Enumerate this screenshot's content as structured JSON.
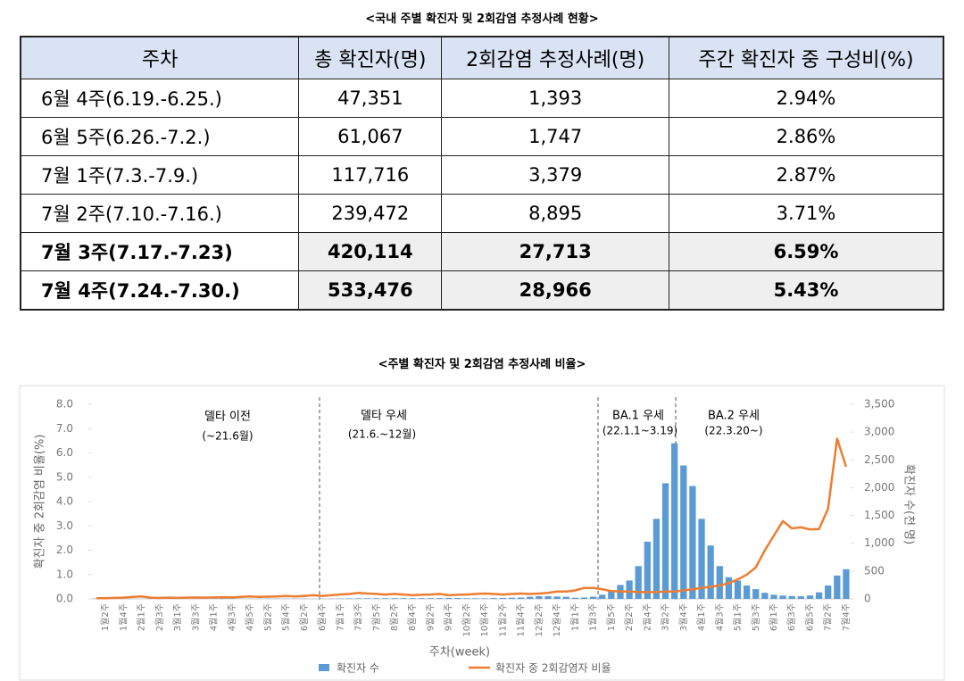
{
  "table": {
    "title": "<국내 주별 확진자 및 2회감염 추정사례 현황>",
    "headers": [
      "주차",
      "총 확진자(명)",
      "2회감염 추정사례(명)",
      "주간 확진자 중 구성비(%)"
    ],
    "rows": [
      [
        "6월 4주(6.19.-6.25.)",
        "47,351",
        "1,393",
        "2.94%"
      ],
      [
        "6월 5주(6.26.-7.2.)",
        "61,067",
        "1,747",
        "2.86%"
      ],
      [
        "7월 1주(7.3.-7.9.)",
        "117,716",
        "3,379",
        "2.87%"
      ],
      [
        "7월 2주(7.10.-7.16.)",
        "239,472",
        "8,895",
        "3.71%"
      ],
      [
        "7월 3주(7.17.-7.23)",
        "420,114",
        "27,713",
        "6.59%"
      ],
      [
        "7월 4주(7.24.-7.30.)",
        "533,476",
        "28,966",
        "5.43%"
      ]
    ]
  },
  "chart_data": {
    "type": "bar_line",
    "title": "<주별 확진자 및 2회감염 추정사례 비율>",
    "xlabel": "주차(week)",
    "ylabel": "확진자 중 2회감염 비율(%)",
    "y2label": "확진자 수(천 명)",
    "annotations": [
      "델타 이전",
      "(~21.6월)",
      "델타 우세",
      "(21.6.~12월)",
      "BA.1 우세",
      "(22.1.1~3.19)",
      "BA.2 우세",
      "(22.3.20~)"
    ],
    "categories": [
      null,
      "1월2주",
      null,
      "1월4주",
      null,
      "2월1주",
      null,
      "2월3주",
      null,
      "3월1주",
      null,
      "3월3주",
      null,
      "4월1주",
      null,
      "4월3주",
      null,
      "4월5주",
      null,
      "5월2주",
      null,
      "5월4주",
      null,
      "6월2주",
      null,
      "6월4주",
      null,
      "7월1주",
      null,
      "7월3주",
      null,
      "7월5주",
      null,
      "8월2주",
      null,
      "8월4주",
      null,
      "9월2주",
      null,
      "9월4주",
      null,
      "10월2주",
      null,
      "10월4주",
      null,
      "11월2주",
      null,
      "11월4주",
      null,
      "12월2주",
      null,
      "12월4주",
      null,
      "1월1주",
      null,
      "1월3주",
      null,
      "1월5주",
      null,
      "2월2주",
      null,
      "2월4주",
      null,
      "3월2주",
      null,
      "3월4주",
      null,
      "4월1주",
      null,
      "4월3주",
      null,
      "5월1주",
      null,
      "5월3주",
      null,
      "6월1주",
      null,
      "6월3주",
      null,
      "6월5주",
      null,
      "7월2주",
      null,
      "7월4주"
    ],
    "series": [
      {
        "name": "확진자 수",
        "type": "bar",
        "axis": "y2",
        "color": "#5b9bd5",
        "values": [
          5.0,
          4.5,
          3.0,
          2.8,
          2.9,
          2.6,
          2.4,
          3.0,
          2.7,
          2.8,
          3.0,
          3.0,
          3.2,
          3.8,
          4.2,
          4.5,
          4.5,
          4.2,
          4.0,
          4.1,
          4.3,
          3.9,
          3.9,
          3.5,
          3.2,
          3.6,
          4.0,
          5.8,
          8.5,
          10.5,
          11.0,
          11.2,
          11.5,
          12.0,
          12.0,
          11.8,
          12.5,
          12.8,
          14.0,
          17.0,
          14.5,
          11.0,
          10.5,
          10.0,
          14.0,
          16.5,
          20.0,
          24.0,
          38.0,
          48.0,
          48.5,
          43.0,
          38.0,
          20,
          25,
          40,
          75,
          150,
          250,
          330,
          590,
          1030,
          1440,
          2080,
          2800,
          2400,
          2030,
          1440,
          960,
          590,
          390,
          330,
          240,
          175,
          110,
          75,
          60,
          50,
          47.351,
          61.067,
          117.716,
          239.472,
          420.114,
          533.476
        ]
      },
      {
        "name": "확진자 중 2회감염자 비율",
        "type": "line",
        "color": "#ed7d31",
        "values": [
          0.03,
          0.03,
          0.04,
          0.05,
          0.08,
          0.1,
          0.05,
          0.04,
          0.05,
          0.04,
          0.05,
          0.06,
          0.05,
          0.06,
          0.07,
          0.06,
          0.08,
          0.1,
          0.08,
          0.09,
          0.1,
          0.12,
          0.1,
          0.12,
          0.15,
          0.12,
          0.15,
          0.18,
          0.2,
          0.25,
          0.22,
          0.2,
          0.18,
          0.2,
          0.18,
          0.15,
          0.17,
          0.18,
          0.2,
          0.15,
          0.17,
          0.18,
          0.2,
          0.22,
          0.2,
          0.18,
          0.2,
          0.22,
          0.2,
          0.22,
          0.25,
          0.3,
          0.3,
          0.35,
          0.45,
          0.45,
          0.4,
          0.32,
          0.3,
          0.3,
          0.28,
          0.28,
          0.28,
          0.3,
          0.3,
          0.35,
          0.4,
          0.45,
          0.5,
          0.55,
          0.65,
          0.8,
          1.0,
          1.3,
          2.0,
          2.6,
          3.2,
          2.9,
          2.94,
          2.86,
          2.87,
          3.71,
          6.59,
          5.43
        ]
      }
    ],
    "ylim": [
      0,
      8
    ],
    "yticks": [
      {
        "value": 0,
        "label": "0.0"
      },
      {
        "value": 1,
        "label": "1.0"
      },
      {
        "value": 2,
        "label": "2.0"
      },
      {
        "value": 3,
        "label": "3.0"
      },
      {
        "value": 4,
        "label": "4.0"
      },
      {
        "value": 5,
        "label": "5.0"
      },
      {
        "value": 6,
        "label": "6.0"
      },
      {
        "value": 7,
        "label": "7.0"
      },
      {
        "value": 8,
        "label": "8.0"
      }
    ],
    "y2lim": [
      0,
      3500
    ],
    "y2ticks": [
      0,
      500,
      {
        "value": 1000,
        "label": "1,000"
      },
      {
        "value": 1500,
        "label": "1,500"
      },
      {
        "value": 2000,
        "label": "2,000"
      },
      {
        "value": 2500,
        "label": "2,500"
      },
      {
        "value": 3000,
        "label": "3,000"
      },
      {
        "value": 3500,
        "label": "3,500"
      }
    ]
  }
}
